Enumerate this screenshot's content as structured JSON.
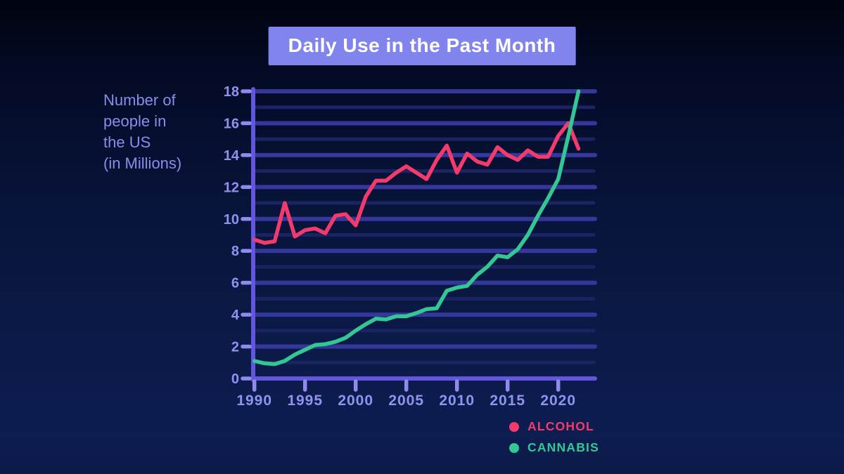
{
  "title": {
    "text": "Daily Use in the Past Month"
  },
  "chart": {
    "y_axis_title": "Number of\npeople in\nthe US\n(in Millions)"
  },
  "colors": {
    "background_top": "#01030e",
    "background_bottom": "#0d1d50",
    "banner": "#8184ec",
    "banner_text": "#ffffff",
    "axis": "#6156dd",
    "tick": "#8f8bee",
    "tick_label": "#8f92ee",
    "grid_major": "#35389a",
    "grid_minor": "#1c2363",
    "alcohol": "#f23b6c",
    "cannabis": "#33c893"
  },
  "chart_data": {
    "type": "line",
    "title": "Daily Use in the Past Month",
    "xlabel": "",
    "ylabel": "Number of people in the US (in Millions)",
    "x": [
      1990,
      1991,
      1992,
      1993,
      1994,
      1995,
      1996,
      1997,
      1998,
      1999,
      2000,
      2001,
      2002,
      2003,
      2004,
      2005,
      2006,
      2007,
      2008,
      2009,
      2010,
      2011,
      2012,
      2013,
      2014,
      2015,
      2016,
      2017,
      2018,
      2019,
      2020,
      2021,
      2022
    ],
    "series": [
      {
        "name": "ALCOHOL",
        "color": "#f23b6c",
        "values": [
          8.7,
          8.5,
          8.6,
          11.0,
          8.9,
          9.3,
          9.4,
          9.1,
          10.2,
          10.3,
          9.6,
          11.4,
          12.4,
          12.4,
          12.9,
          13.3,
          12.9,
          12.5,
          13.7,
          14.6,
          12.9,
          14.1,
          13.6,
          13.4,
          14.5,
          14.0,
          13.7,
          14.3,
          13.9,
          13.9,
          15.2,
          16.0,
          14.4
        ]
      },
      {
        "name": "CANNABIS",
        "color": "#33c893",
        "values": [
          1.1,
          0.95,
          0.9,
          1.1,
          1.5,
          1.8,
          2.1,
          2.15,
          2.3,
          2.55,
          3.0,
          3.4,
          3.75,
          3.7,
          3.9,
          3.9,
          4.1,
          4.35,
          4.4,
          5.5,
          5.7,
          5.8,
          6.5,
          7.0,
          7.7,
          7.6,
          8.1,
          9.0,
          10.2,
          11.3,
          12.5,
          15.2,
          18.0
        ]
      }
    ],
    "xticks": [
      1990,
      1995,
      2000,
      2005,
      2010,
      2015,
      2020
    ],
    "yticks": [
      0,
      2,
      4,
      6,
      8,
      10,
      12,
      14,
      16,
      18
    ],
    "ylim": [
      0,
      18
    ],
    "xlim": [
      1990,
      2024
    ],
    "grid": "horizontal: bright lines at even values, faint lines at odd values",
    "legend_position": "bottom-right"
  }
}
